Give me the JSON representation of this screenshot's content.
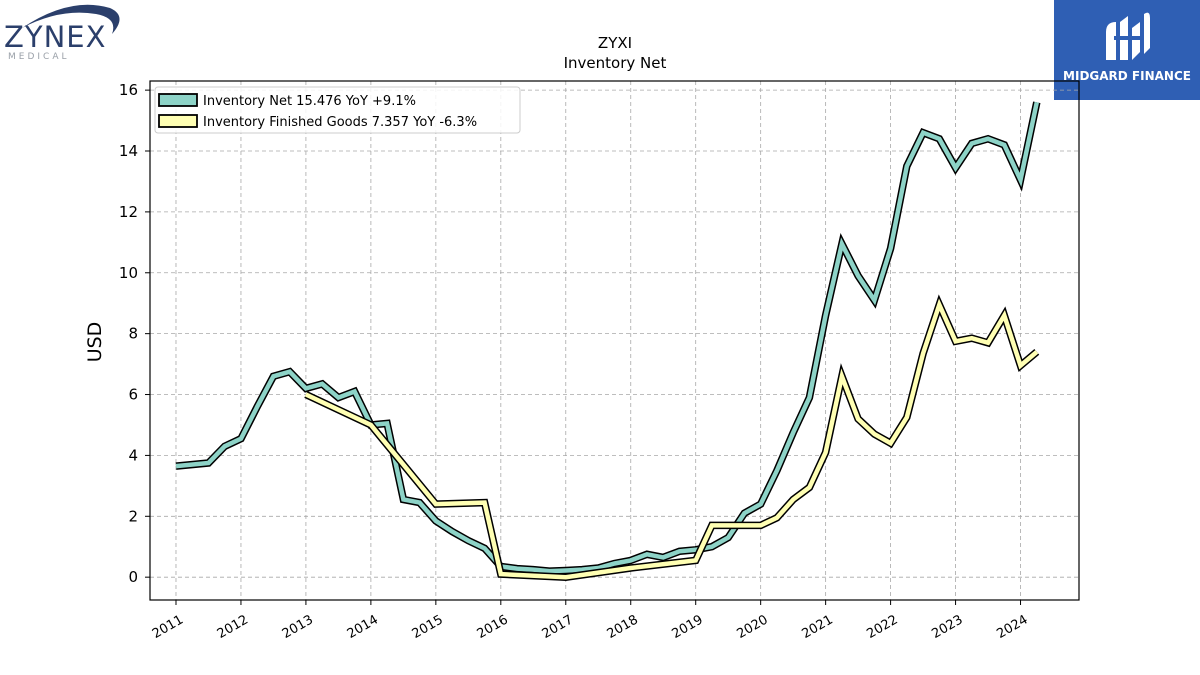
{
  "logos": {
    "zynex_name": "ZYNEX",
    "zynex_sub": "MEDICAL",
    "midgard_name": "MIDGARD FINANCE"
  },
  "chart_data": {
    "type": "line",
    "title": "ZYXI",
    "subtitle": "Inventory Net",
    "xlabel": "",
    "ylabel": "USD",
    "xlim": [
      2010.6,
      2024.9
    ],
    "ylim": [
      -0.75,
      16.3
    ],
    "yticks": [
      0,
      2,
      4,
      6,
      8,
      10,
      12,
      14,
      16
    ],
    "xticks": [
      2011,
      2012,
      2013,
      2014,
      2015,
      2016,
      2017,
      2018,
      2019,
      2020,
      2021,
      2022,
      2023,
      2024
    ],
    "grid": true,
    "legend_position": "top-left",
    "series": [
      {
        "name": "Inventory Net",
        "legend_label": "Inventory Net  15.476 YoY +9.1%",
        "color": "#8dd3c7",
        "x": [
          2011.0,
          2011.5,
          2011.75,
          2012.0,
          2012.25,
          2012.5,
          2012.75,
          2013.0,
          2013.25,
          2013.5,
          2013.75,
          2014.0,
          2014.25,
          2014.5,
          2014.75,
          2015.0,
          2015.25,
          2015.5,
          2015.75,
          2016.0,
          2016.25,
          2016.5,
          2016.75,
          2017.0,
          2017.25,
          2017.5,
          2017.75,
          2018.0,
          2018.25,
          2018.5,
          2018.75,
          2019.0,
          2019.25,
          2019.5,
          2019.75,
          2020.0,
          2020.25,
          2020.5,
          2020.75,
          2021.0,
          2021.25,
          2021.5,
          2021.75,
          2022.0,
          2022.25,
          2022.5,
          2022.75,
          2023.0,
          2023.25,
          2023.5,
          2023.75,
          2024.0,
          2024.25
        ],
        "values": [
          3.65,
          3.75,
          4.3,
          4.55,
          5.6,
          6.6,
          6.75,
          6.2,
          6.35,
          5.9,
          6.1,
          5.0,
          5.05,
          2.55,
          2.45,
          1.85,
          1.5,
          1.2,
          0.95,
          0.35,
          0.28,
          0.25,
          0.2,
          0.22,
          0.25,
          0.3,
          0.45,
          0.55,
          0.75,
          0.65,
          0.85,
          0.9,
          1.0,
          1.3,
          2.1,
          2.4,
          3.5,
          4.75,
          5.9,
          8.6,
          10.95,
          9.9,
          9.1,
          10.8,
          13.5,
          14.6,
          14.4,
          13.45,
          14.25,
          14.4,
          14.2,
          13.05,
          15.6
        ]
      },
      {
        "name": "Inventory Finished Goods",
        "legend_label": "Inventory Finished Goods  7.357 YoY -6.3%",
        "color": "#ffffb3",
        "x": [
          2013.0,
          2014.0,
          2015.0,
          2015.75,
          2016.0,
          2017.0,
          2018.0,
          2019.0,
          2019.25,
          2020.0,
          2020.25,
          2020.5,
          2020.75,
          2021.0,
          2021.25,
          2021.5,
          2021.75,
          2022.0,
          2022.25,
          2022.5,
          2022.75,
          2023.0,
          2023.25,
          2023.5,
          2023.75,
          2024.0,
          2024.25
        ],
        "values": [
          6.0,
          5.0,
          2.4,
          2.45,
          0.1,
          0.0,
          0.3,
          0.55,
          1.7,
          1.7,
          1.95,
          2.55,
          2.95,
          4.1,
          6.6,
          5.2,
          4.7,
          4.4,
          5.25,
          7.35,
          8.95,
          7.75,
          7.85,
          7.7,
          8.6,
          6.95,
          7.4
        ]
      }
    ]
  }
}
